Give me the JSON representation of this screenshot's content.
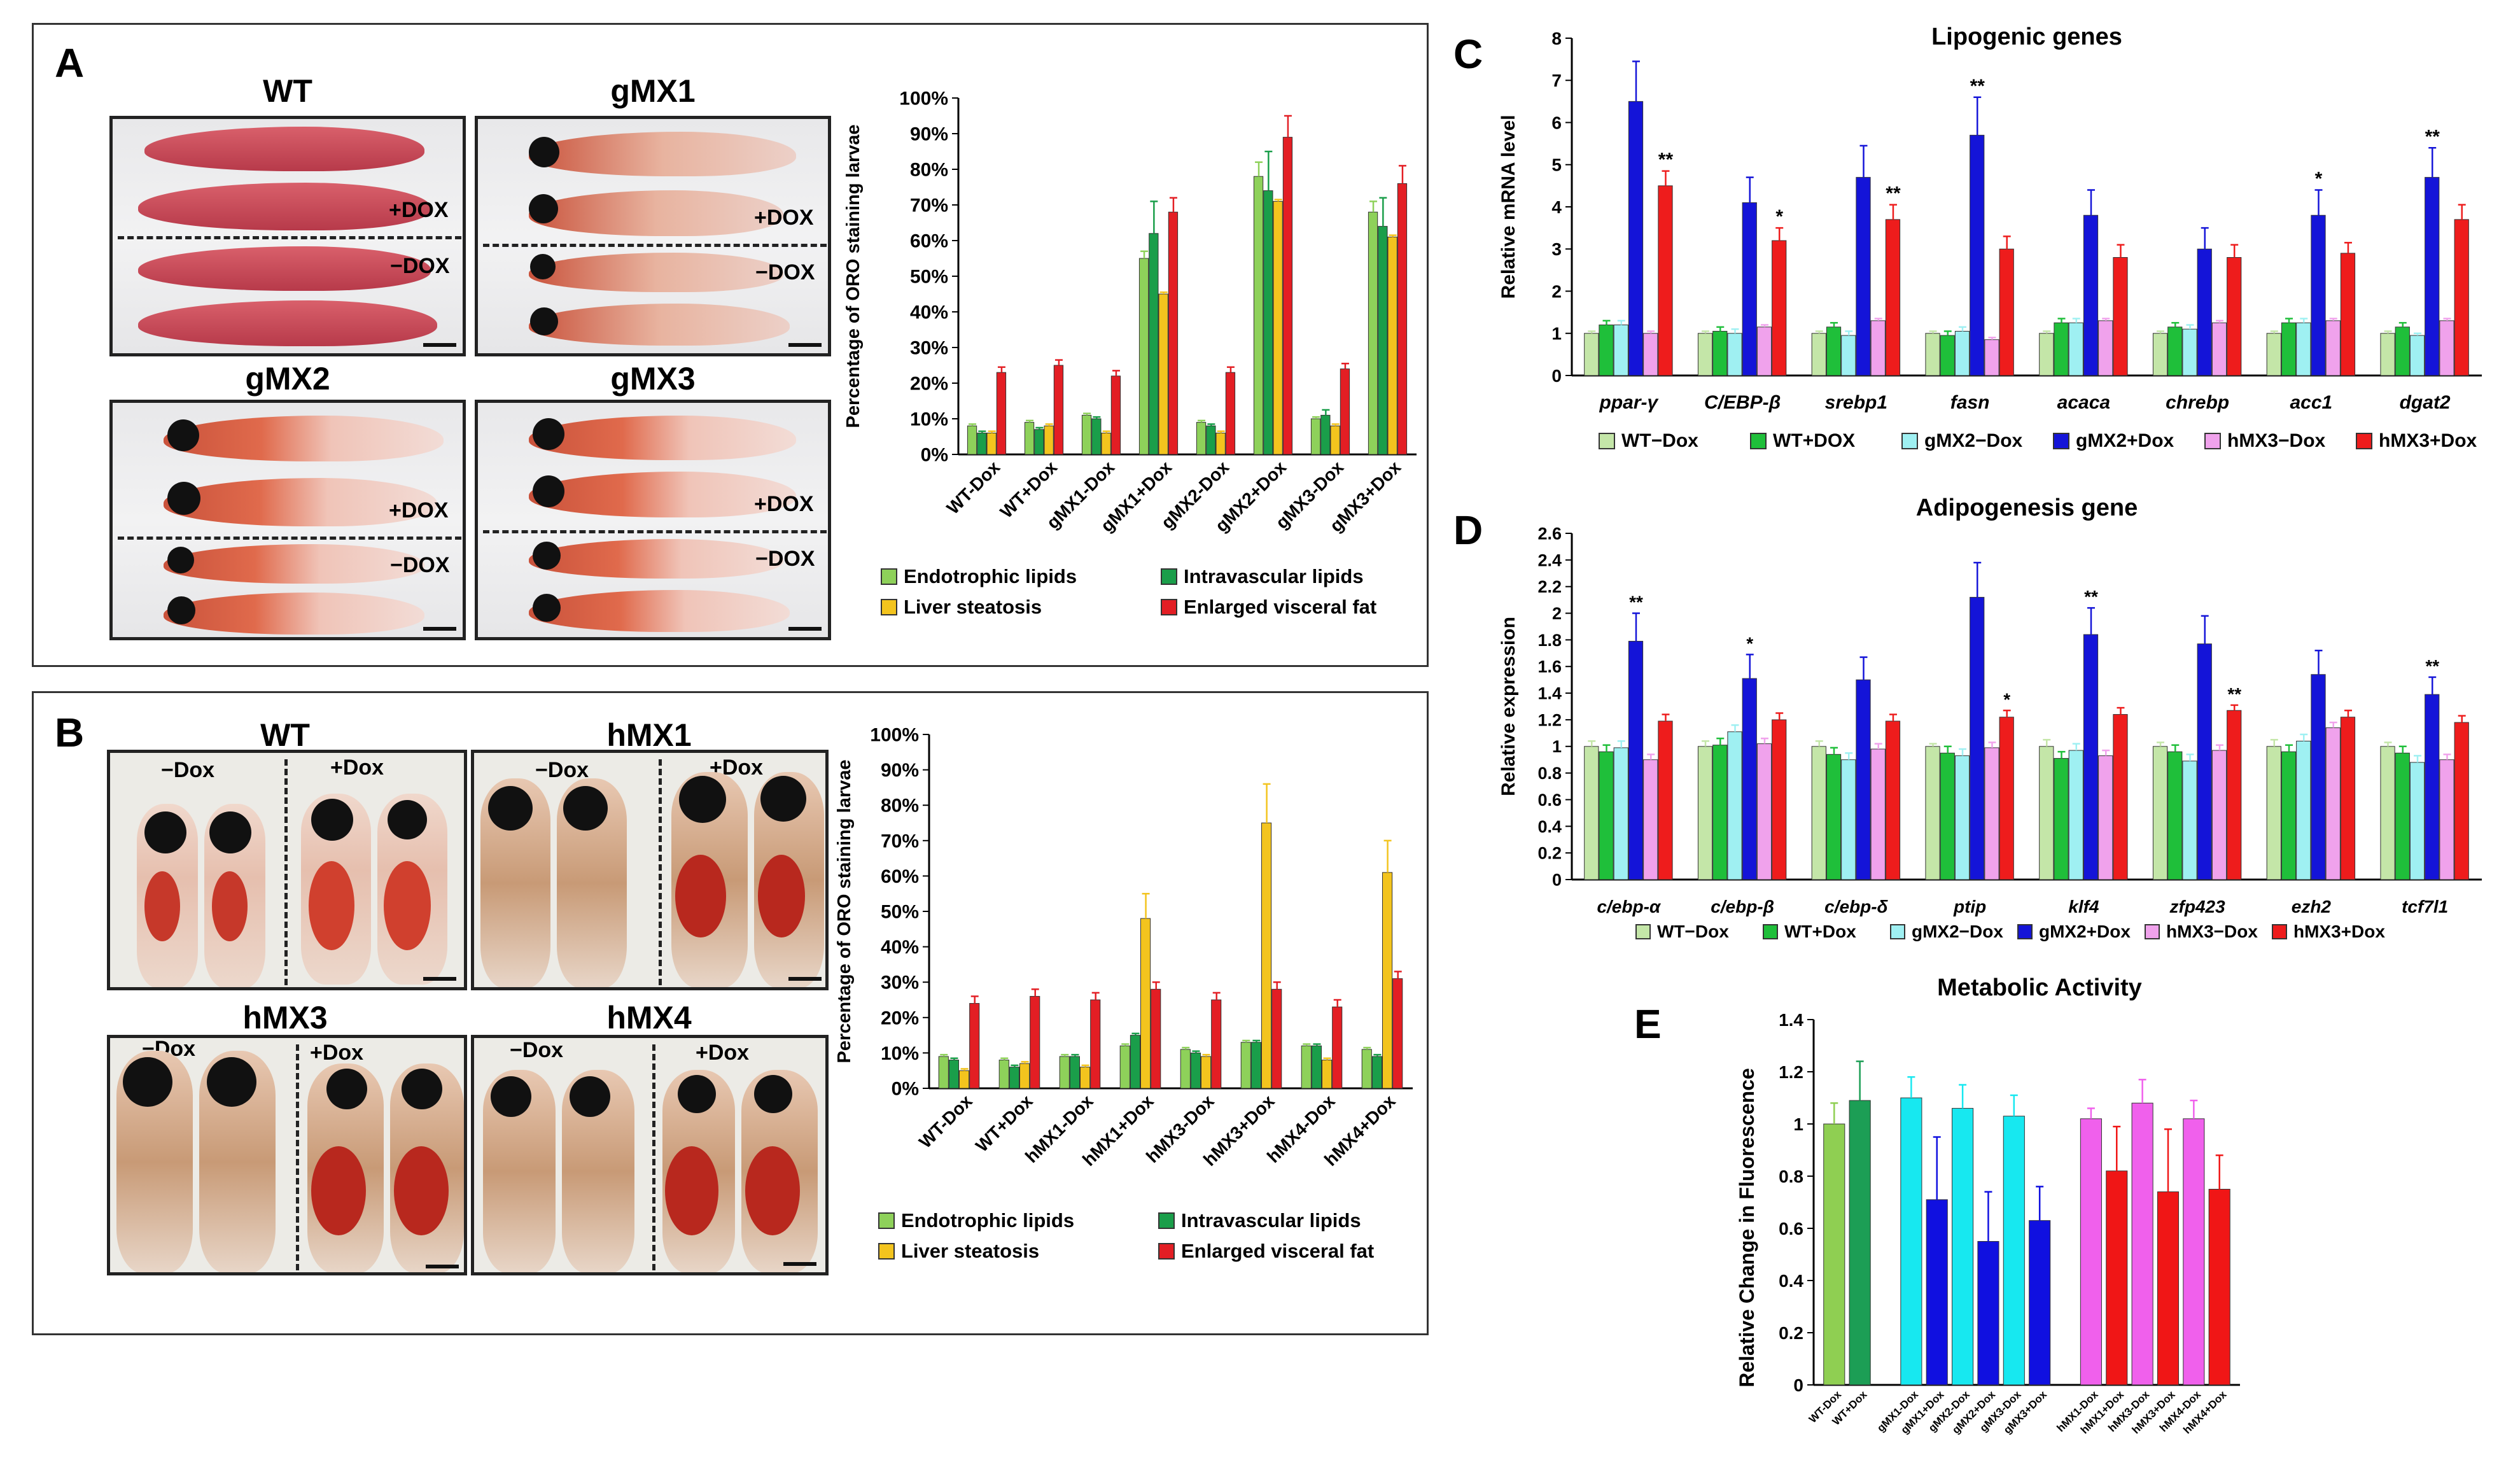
{
  "panels": {
    "A": {
      "label": "A",
      "photos": [
        {
          "title": "WT",
          "upper": "+DOX",
          "lower": "−DOX"
        },
        {
          "title": "gMX1",
          "upper": "+DOX",
          "lower": "−DOX"
        },
        {
          "title": "gMX2",
          "upper": "+DOX",
          "lower": "−DOX"
        },
        {
          "title": "gMX3",
          "upper": "+DOX",
          "lower": "−DOX"
        }
      ],
      "legend": [
        "Endotrophic lipids",
        "Intravascular lipids",
        "Liver steatosis",
        "Enlarged visceral fat"
      ]
    },
    "B": {
      "label": "B",
      "photos": [
        {
          "title": "WT",
          "left": "−Dox",
          "right": "+Dox"
        },
        {
          "title": "hMX1",
          "left": "−Dox",
          "right": "+Dox"
        },
        {
          "title": "hMX3",
          "left": "−Dox",
          "right": "+Dox"
        },
        {
          "title": "hMX4",
          "left": "−Dox",
          "right": "+Dox"
        }
      ],
      "legend": [
        "Endotrophic lipids",
        "Intravascular lipids",
        "Liver steatosis",
        "Enlarged visceral fat"
      ]
    },
    "C": {
      "label": "C",
      "legend": [
        "WT−Dox",
        "WT+DOX",
        "gMX2−Dox",
        "gMX2+Dox",
        "hMX3−Dox",
        "hMX3+Dox"
      ]
    },
    "D": {
      "label": "D",
      "legend": [
        "WT−Dox",
        "WT+Dox",
        "gMX2−Dox",
        "gMX2+Dox",
        "hMX3−Dox",
        "hMX3+Dox"
      ]
    },
    "E": {
      "label": "E"
    }
  },
  "colors": {
    "endotrophic": "#8ed15a",
    "intravascular": "#1a9e4a",
    "steatosis": "#f3c41e",
    "visceral": "#e31e24",
    "wt_minus": "#c4e6a8",
    "wt_plus": "#1fbf3a",
    "gmx2_minus": "#9ff0f2",
    "gmx2_plus": "#1414d8",
    "hmx3_minus": "#f0a2ec",
    "hmx3_plus": "#ee1c1c",
    "e_wt_minus": "#8fcf52",
    "e_wt_plus": "#1c9e55",
    "e_cyan": "#17e8f0",
    "e_blue": "#1010e0",
    "e_pink": "#f060ec",
    "e_red": "#f01616"
  },
  "chart_data": [
    {
      "id": "A",
      "type": "bar",
      "title": "",
      "ylabel": "Percentage of ORO staining larvae",
      "ylim": [
        0,
        100
      ],
      "yticks": [
        "0%",
        "10%",
        "20%",
        "30%",
        "40%",
        "50%",
        "60%",
        "70%",
        "80%",
        "90%",
        "100%"
      ],
      "categories": [
        "WT-Dox",
        "WT+Dox",
        "gMX1-Dox",
        "gMX1+Dox",
        "gMX2-Dox",
        "gMX2+Dox",
        "gMX3-Dox",
        "gMX3+Dox"
      ],
      "series": [
        {
          "name": "Endotrophic lipids",
          "color": "#8ed15a",
          "values": [
            8,
            9,
            11,
            55,
            9,
            78,
            10,
            68
          ],
          "errors": [
            0.5,
            0.5,
            0.5,
            2,
            0.5,
            4,
            0.5,
            3
          ]
        },
        {
          "name": "Intravascular lipids",
          "color": "#1a9e4a",
          "values": [
            6,
            7,
            10,
            62,
            8,
            74,
            11,
            64
          ],
          "errors": [
            0.5,
            0.5,
            0.5,
            9,
            0.5,
            11,
            1.5,
            8
          ]
        },
        {
          "name": "Liver steatosis",
          "color": "#f3c41e",
          "values": [
            6,
            8,
            6,
            45,
            6,
            71,
            8,
            61
          ],
          "errors": [
            0.5,
            0.5,
            0.5,
            0.5,
            0.5,
            0.5,
            0.5,
            0.5
          ]
        },
        {
          "name": "Enlarged visceral fat",
          "color": "#e31e24",
          "values": [
            23,
            25,
            22,
            68,
            23,
            89,
            24,
            76
          ],
          "errors": [
            1.5,
            1.5,
            1.5,
            4,
            1.5,
            6,
            1.5,
            5
          ]
        }
      ]
    },
    {
      "id": "B",
      "type": "bar",
      "title": "",
      "ylabel": "Percentage of ORO staining larvae",
      "ylim": [
        0,
        100
      ],
      "yticks": [
        "0%",
        "10%",
        "20%",
        "30%",
        "40%",
        "50%",
        "60%",
        "70%",
        "80%",
        "90%",
        "100%"
      ],
      "categories": [
        "WT-Dox",
        "WT+Dox",
        "hMX1-Dox",
        "hMX1+Dox",
        "hMX3-Dox",
        "hMX3+Dox",
        "hMX4-Dox",
        "hMX4+Dox"
      ],
      "series": [
        {
          "name": "Endotrophic lipids",
          "color": "#8ed15a",
          "values": [
            9,
            8,
            9,
            12,
            11,
            13,
            12,
            11
          ],
          "errors": [
            0.5,
            0.5,
            0.5,
            0.5,
            0.5,
            0.5,
            0.5,
            0.5
          ]
        },
        {
          "name": "Intravascular lipids",
          "color": "#1a9e4a",
          "values": [
            8,
            6,
            9,
            15,
            10,
            13,
            12,
            9
          ],
          "errors": [
            0.5,
            0.5,
            0.5,
            0.5,
            0.5,
            0.5,
            0.5,
            0.5
          ]
        },
        {
          "name": "Liver steatosis",
          "color": "#f3c41e",
          "values": [
            5,
            7,
            6,
            48,
            9,
            75,
            8,
            61
          ],
          "errors": [
            0.5,
            0.5,
            0.5,
            7,
            0.5,
            11,
            0.5,
            9
          ]
        },
        {
          "name": "Enlarged visceral fat",
          "color": "#e31e24",
          "values": [
            24,
            26,
            25,
            28,
            25,
            28,
            23,
            31
          ],
          "errors": [
            2,
            2,
            2,
            2,
            2,
            2,
            2,
            2
          ]
        }
      ]
    },
    {
      "id": "C",
      "type": "bar",
      "title": "Lipogenic genes",
      "ylabel": "Relative mRNA level",
      "ylim": [
        0,
        8
      ],
      "yticks": [
        "0",
        "1",
        "2",
        "3",
        "4",
        "5",
        "6",
        "7",
        "8"
      ],
      "categories": [
        "ppar-γ",
        "C/EBP-β",
        "srebp1",
        "fasn",
        "acaca",
        "chrebp",
        "acc1",
        "dgat2"
      ],
      "series": [
        {
          "name": "WT−Dox",
          "color": "#c4e6a8",
          "values": [
            1.0,
            1.0,
            1.0,
            1.0,
            1.0,
            1.0,
            1.0,
            1.0
          ],
          "errors": [
            0.05,
            0.05,
            0.05,
            0.05,
            0.05,
            0.05,
            0.05,
            0.05
          ]
        },
        {
          "name": "WT+DOX",
          "color": "#1fbf3a",
          "values": [
            1.2,
            1.05,
            1.15,
            0.95,
            1.25,
            1.15,
            1.25,
            1.15
          ],
          "errors": [
            0.1,
            0.1,
            0.1,
            0.1,
            0.1,
            0.1,
            0.1,
            0.1
          ]
        },
        {
          "name": "gMX2−Dox",
          "color": "#9ff0f2",
          "values": [
            1.2,
            1.0,
            0.95,
            1.05,
            1.25,
            1.1,
            1.25,
            0.95
          ],
          "errors": [
            0.1,
            0.1,
            0.1,
            0.1,
            0.1,
            0.1,
            0.1,
            0.05
          ]
        },
        {
          "name": "gMX2+Dox",
          "color": "#1414d8",
          "values": [
            6.5,
            4.1,
            4.7,
            5.7,
            3.8,
            3.0,
            3.8,
            4.7
          ],
          "errors": [
            0.95,
            0.6,
            0.75,
            0.9,
            0.6,
            0.5,
            0.6,
            0.7
          ]
        },
        {
          "name": "hMX3−Dox",
          "color": "#f0a2ec",
          "values": [
            1.0,
            1.15,
            1.3,
            0.85,
            1.3,
            1.25,
            1.3,
            1.3
          ],
          "errors": [
            0.05,
            0.05,
            0.05,
            0.05,
            0.05,
            0.05,
            0.05,
            0.05
          ]
        },
        {
          "name": "hMX3+Dox",
          "color": "#ee1c1c",
          "values": [
            4.5,
            3.2,
            3.7,
            3.0,
            2.8,
            2.8,
            2.9,
            3.7
          ],
          "errors": [
            0.35,
            0.3,
            0.35,
            0.3,
            0.3,
            0.3,
            0.25,
            0.35
          ]
        }
      ],
      "annotations": [
        {
          "category": 0,
          "series": 5,
          "text": "**"
        },
        {
          "category": 1,
          "series": 5,
          "text": "*"
        },
        {
          "category": 2,
          "series": 5,
          "text": "**"
        },
        {
          "category": 3,
          "series": 3,
          "text": "**"
        },
        {
          "category": 6,
          "series": 3,
          "text": "*"
        },
        {
          "category": 7,
          "series": 3,
          "text": "**"
        }
      ]
    },
    {
      "id": "D",
      "type": "bar",
      "title": "Adipogenesis gene",
      "ylabel": "Relative expression",
      "ylim": [
        0,
        2.6
      ],
      "yticks": [
        "0",
        "0.2",
        "0.4",
        "0.6",
        "0.8",
        "1",
        "1.2",
        "1.4",
        "1.6",
        "1.8",
        "2",
        "2.2",
        "2.4",
        "2.6"
      ],
      "categories": [
        "c/ebp-α",
        "c/ebp-β",
        "c/ebp-δ",
        "ptip",
        "klf4",
        "zfp423",
        "ezh2",
        "tcf7l1"
      ],
      "series": [
        {
          "name": "WT−Dox",
          "color": "#c4e6a8",
          "values": [
            1.0,
            1.0,
            1.0,
            1.0,
            1.0,
            1.0,
            1.0,
            1.0
          ],
          "errors": [
            0.04,
            0.04,
            0.04,
            0.02,
            0.05,
            0.03,
            0.05,
            0.03
          ]
        },
        {
          "name": "WT+Dox",
          "color": "#1fbf3a",
          "values": [
            0.96,
            1.01,
            0.94,
            0.95,
            0.91,
            0.96,
            0.96,
            0.95
          ],
          "errors": [
            0.05,
            0.05,
            0.05,
            0.05,
            0.05,
            0.05,
            0.05,
            0.05
          ]
        },
        {
          "name": "gMX2−Dox",
          "color": "#9ff0f2",
          "values": [
            0.99,
            1.11,
            0.9,
            0.93,
            0.97,
            0.89,
            1.04,
            0.88
          ],
          "errors": [
            0.05,
            0.05,
            0.05,
            0.05,
            0.05,
            0.05,
            0.05,
            0.05
          ]
        },
        {
          "name": "gMX2+Dox",
          "color": "#1414d8",
          "values": [
            1.79,
            1.51,
            1.5,
            2.12,
            1.84,
            1.77,
            1.54,
            1.39
          ],
          "errors": [
            0.21,
            0.18,
            0.17,
            0.26,
            0.2,
            0.21,
            0.18,
            0.13
          ]
        },
        {
          "name": "hMX3−Dox",
          "color": "#f0a2ec",
          "values": [
            0.9,
            1.02,
            0.98,
            0.99,
            0.93,
            0.97,
            1.14,
            0.9
          ],
          "errors": [
            0.04,
            0.04,
            0.04,
            0.04,
            0.04,
            0.04,
            0.04,
            0.04
          ]
        },
        {
          "name": "hMX3+Dox",
          "color": "#ee1c1c",
          "values": [
            1.19,
            1.2,
            1.19,
            1.22,
            1.24,
            1.27,
            1.22,
            1.18
          ],
          "errors": [
            0.05,
            0.05,
            0.05,
            0.05,
            0.05,
            0.04,
            0.05,
            0.05
          ]
        }
      ],
      "annotations": [
        {
          "category": 0,
          "series": 3,
          "text": "**"
        },
        {
          "category": 1,
          "series": 3,
          "text": "*"
        },
        {
          "category": 3,
          "series": 5,
          "text": "*"
        },
        {
          "category": 4,
          "series": 3,
          "text": "**"
        },
        {
          "category": 5,
          "series": 5,
          "text": "**"
        },
        {
          "category": 7,
          "series": 3,
          "text": "**"
        }
      ]
    },
    {
      "id": "E",
      "type": "bar",
      "title": "Metabolic Activity",
      "ylabel": "Relative Change in Fluorescence",
      "ylim": [
        0,
        1.4
      ],
      "yticks": [
        "0",
        "0.2",
        "0.4",
        "0.6",
        "0.8",
        "1",
        "1.2",
        "1.4"
      ],
      "categories": [
        "WT-Dox",
        "WT+Dox",
        "gMX1-Dox",
        "gMX1+Dox",
        "gMX2-Dox",
        "gMX2+Dox",
        "gMX3-Dox",
        "gMX3+Dox",
        "hMX1-Dox",
        "hMX1+Dox",
        "hMX3-Dox",
        "hMX3+Dox",
        "hMX4-Dox",
        "hMX4+Dox"
      ],
      "groups": [
        [
          0,
          1
        ],
        [
          2,
          3,
          4,
          5,
          6,
          7
        ],
        [
          8,
          9,
          10,
          11,
          12,
          13
        ]
      ],
      "values": [
        1.0,
        1.09,
        1.1,
        0.71,
        1.06,
        0.55,
        1.03,
        0.63,
        1.02,
        0.82,
        1.08,
        0.74,
        1.02,
        0.75
      ],
      "errors": [
        0.08,
        0.15,
        0.08,
        0.24,
        0.09,
        0.19,
        0.08,
        0.13,
        0.04,
        0.17,
        0.09,
        0.24,
        0.07,
        0.13
      ],
      "bar_colors": [
        "#8fcf52",
        "#1c9e55",
        "#17e8f0",
        "#1010e0",
        "#17e8f0",
        "#1010e0",
        "#17e8f0",
        "#1010e0",
        "#f060ec",
        "#f01616",
        "#f060ec",
        "#f01616",
        "#f060ec",
        "#f01616"
      ]
    }
  ]
}
